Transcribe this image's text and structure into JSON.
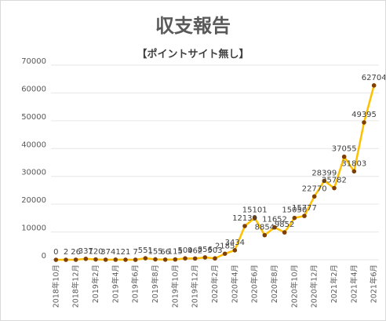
{
  "chart_data": {
    "type": "line",
    "title": "収支報告",
    "subtitle": "【ポイントサイト無し】",
    "ylim": [
      0,
      70000
    ],
    "yticks": [
      0,
      10000,
      20000,
      30000,
      40000,
      50000,
      60000,
      70000
    ],
    "grid": true,
    "legend": "none",
    "line_color": "#FFC000",
    "marker_color": "#7F3F00",
    "x": [
      "2018年10月",
      "2018年11月",
      "2018年12月",
      "2019年1月",
      "2019年2月",
      "2019年3月",
      "2019年4月",
      "2019年5月",
      "2019年6月",
      "2019年7月",
      "2019年8月",
      "2019年9月",
      "2019年10月",
      "2019年11月",
      "2019年12月",
      "2020年1月",
      "2020年2月",
      "2020年3月",
      "2020年4月",
      "2020年5月",
      "2020年6月",
      "2020年7月",
      "2020年8月",
      "2020年9月",
      "2020年10月",
      "2020年11月",
      "2020年12月",
      "2021年1月",
      "2021年2月",
      "2021年3月",
      "2021年4月",
      "2021年5月",
      "2021年6月"
    ],
    "xtick_labels": [
      "2018年10月",
      "2018年12月",
      "2019年2月",
      "2019年4月",
      "2019年6月",
      "2019年8月",
      "2019年10月",
      "2019年12月",
      "2020年2月",
      "2020年4月",
      "2020年6月",
      "2020年8月",
      "2020年10月",
      "2020年12月",
      "2021年2月",
      "2021年4月",
      "2021年6月"
    ],
    "values": [
      0,
      2,
      26,
      337,
      120,
      37,
      41,
      21,
      7,
      551,
      155,
      66,
      115,
      509,
      462,
      856,
      503,
      2185,
      3434,
      12139,
      15101,
      8854,
      11652,
      9852,
      15050,
      15777,
      22770,
      28399,
      25782,
      37055,
      31803,
      49395,
      62704
    ],
    "value_labels": [
      "0",
      "2",
      "26",
      "337",
      "120",
      "37",
      "41",
      "21",
      "7",
      "551",
      "155",
      "66",
      "115",
      "509",
      "462",
      "856",
      "503",
      "2185",
      "3434",
      "12139",
      "15101",
      "8854",
      "11652",
      "9852",
      "15050",
      "15777",
      "22770",
      "28399",
      "25782",
      "37055",
      "31803",
      "49395",
      "62704"
    ]
  }
}
